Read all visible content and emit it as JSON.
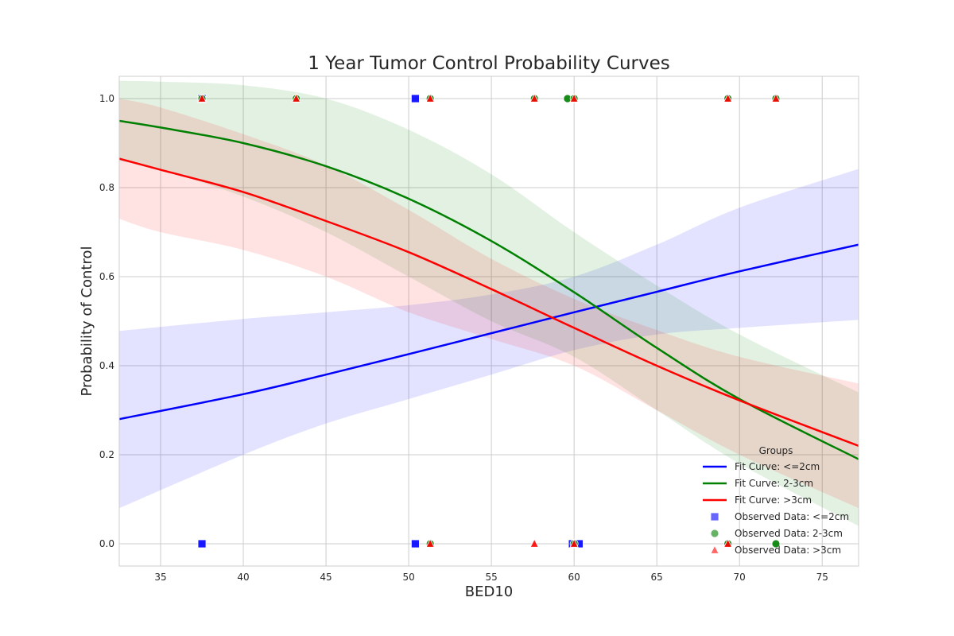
{
  "chart_data": {
    "type": "line",
    "title": "1 Year Tumor Control Probability Curves",
    "xlabel": "BED10",
    "ylabel": "Probability of Control",
    "xlim": [
      32.5,
      77.2
    ],
    "ylim": [
      -0.05,
      1.05
    ],
    "xticks": [
      35,
      40,
      45,
      50,
      55,
      60,
      65,
      70,
      75
    ],
    "yticks": [
      0.0,
      0.2,
      0.4,
      0.6,
      0.8,
      1.0
    ],
    "xtick_labels": [
      "35",
      "40",
      "45",
      "50",
      "55",
      "60",
      "65",
      "70",
      "75"
    ],
    "ytick_labels": [
      "0.0",
      "0.2",
      "0.4",
      "0.6",
      "0.8",
      "1.0"
    ],
    "grid": true,
    "legend": {
      "title": "Groups",
      "placement": "bottom-right"
    },
    "fit_curves": [
      {
        "name": "Fit Curve: <=2cm",
        "color": "#0000ff",
        "x": [
          32.5,
          40,
          45,
          50,
          55,
          60,
          65,
          70,
          77.2
        ],
        "y": [
          0.28,
          0.336,
          0.38,
          0.426,
          0.473,
          0.52,
          0.566,
          0.612,
          0.672
        ],
        "ci_upper": [
          0.478,
          0.505,
          0.52,
          0.536,
          0.56,
          0.6,
          0.672,
          0.755,
          0.842
        ],
        "ci_lower": [
          0.08,
          0.2,
          0.27,
          0.325,
          0.38,
          0.435,
          0.47,
          0.485,
          0.503
        ]
      },
      {
        "name": "Fit Curve: 2-3cm",
        "color": "#008000",
        "x": [
          32.5,
          35,
          40,
          45,
          50,
          55,
          60,
          65,
          70,
          77.2
        ],
        "y": [
          0.95,
          0.935,
          0.9,
          0.848,
          0.775,
          0.68,
          0.565,
          0.44,
          0.325,
          0.19
        ],
        "ci_upper": [
          1.04,
          1.038,
          1.03,
          1.0,
          0.93,
          0.83,
          0.7,
          0.58,
          0.47,
          0.34
        ],
        "ci_lower": [
          0.86,
          0.84,
          0.78,
          0.7,
          0.6,
          0.5,
          0.42,
          0.3,
          0.18,
          0.04
        ]
      },
      {
        "name": "Fit Curve: >3cm",
        "color": "#ff0000",
        "x": [
          32.5,
          35,
          40,
          45,
          50,
          55,
          60,
          65,
          70,
          77.2
        ],
        "y": [
          0.865,
          0.84,
          0.79,
          0.725,
          0.655,
          0.572,
          0.485,
          0.4,
          0.322,
          0.22
        ],
        "ci_upper": [
          1.0,
          0.98,
          0.92,
          0.85,
          0.75,
          0.64,
          0.55,
          0.48,
          0.42,
          0.36
        ],
        "ci_lower": [
          0.73,
          0.7,
          0.66,
          0.6,
          0.52,
          0.46,
          0.4,
          0.3,
          0.2,
          0.08
        ]
      }
    ],
    "observed": [
      {
        "name": "Observed Data: <=2cm",
        "color": "#0000ff",
        "marker": "square",
        "points": [
          [
            37.5,
            1.0
          ],
          [
            37.5,
            0.0
          ],
          [
            50.4,
            1.0
          ],
          [
            50.4,
            0.0
          ],
          [
            59.9,
            0.0
          ],
          [
            60.3,
            0.0
          ]
        ]
      },
      {
        "name": "Observed Data: 2-3cm",
        "color": "#008000",
        "marker": "circle",
        "points": [
          [
            37.5,
            1.0
          ],
          [
            43.2,
            1.0
          ],
          [
            51.3,
            1.0
          ],
          [
            51.3,
            0.0
          ],
          [
            57.6,
            1.0
          ],
          [
            59.6,
            1.0
          ],
          [
            60.0,
            1.0
          ],
          [
            60.0,
            0.0
          ],
          [
            69.3,
            1.0
          ],
          [
            69.3,
            0.0
          ],
          [
            72.2,
            1.0
          ],
          [
            72.2,
            0.0
          ]
        ]
      },
      {
        "name": "Observed Data: >3cm",
        "color": "#ff0000",
        "marker": "triangle",
        "points": [
          [
            37.5,
            1.0
          ],
          [
            43.2,
            1.0
          ],
          [
            51.3,
            1.0
          ],
          [
            51.3,
            0.0
          ],
          [
            57.6,
            1.0
          ],
          [
            57.6,
            0.0
          ],
          [
            60.0,
            1.0
          ],
          [
            60.0,
            0.0
          ],
          [
            69.3,
            1.0
          ],
          [
            69.3,
            0.0
          ],
          [
            72.2,
            1.0
          ]
        ]
      }
    ]
  }
}
